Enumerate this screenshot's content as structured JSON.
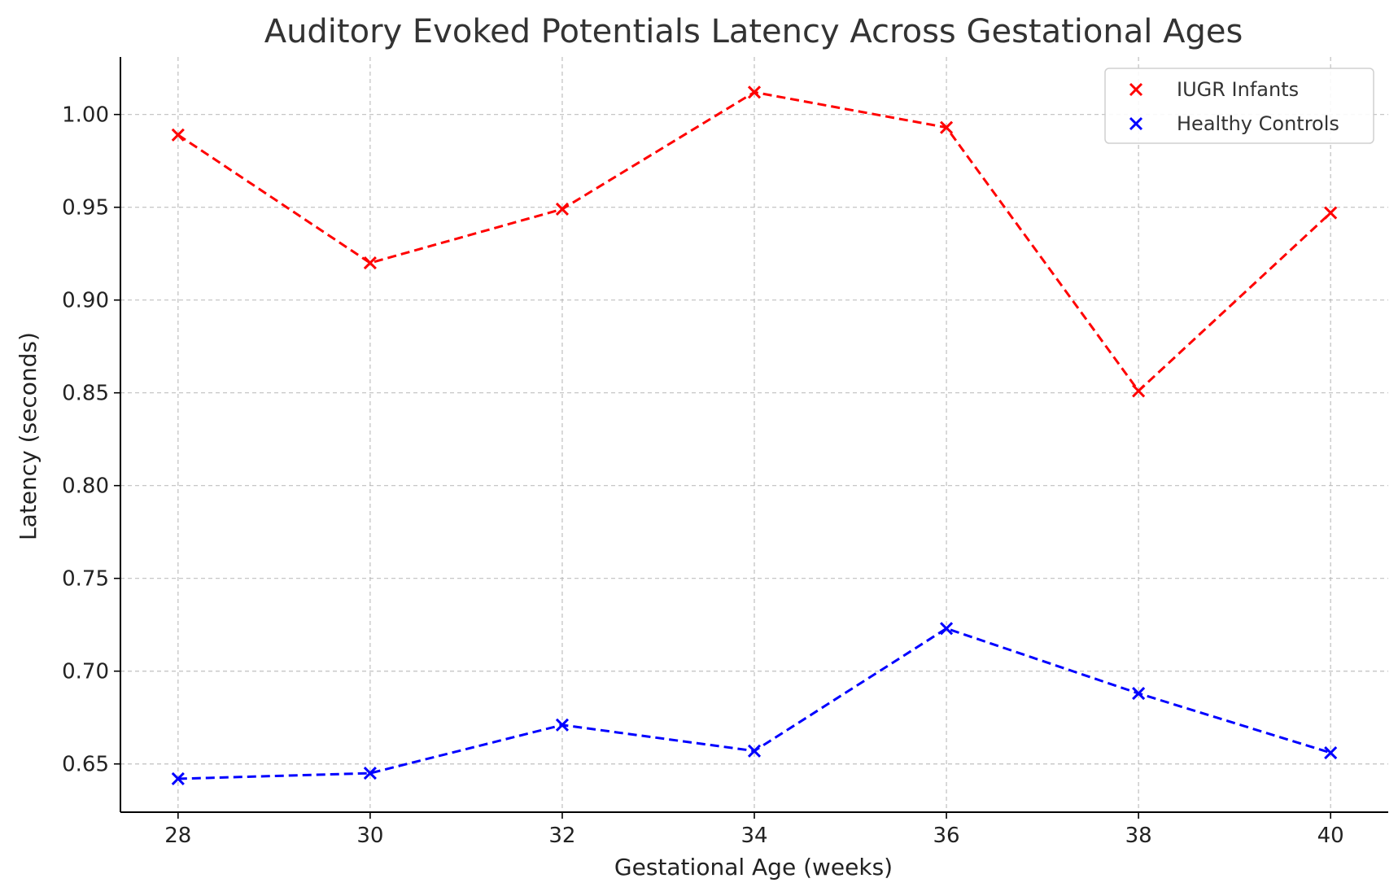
{
  "chart_data": {
    "type": "line",
    "title": "Auditory Evoked Potentials Latency Across Gestational Ages",
    "xlabel": "Gestational Age (weeks)",
    "ylabel": "Latency (seconds)",
    "x": [
      28,
      30,
      32,
      34,
      36,
      38,
      40
    ],
    "xlim": [
      27.4,
      40.6
    ],
    "ylim": [
      0.624,
      1.031
    ],
    "xticks": [
      28,
      30,
      32,
      34,
      36,
      38,
      40
    ],
    "yticks": [
      0.65,
      0.7,
      0.75,
      0.8,
      0.85,
      0.9,
      0.95,
      1.0
    ],
    "ytick_labels": [
      "0.65",
      "0.70",
      "0.75",
      "0.80",
      "0.85",
      "0.90",
      "0.95",
      "1.00"
    ],
    "grid": true,
    "legend_position": "top-right",
    "series": [
      {
        "name": "IUGR Infants",
        "color": "#ff0000",
        "marker": "x",
        "linestyle": "dashed",
        "values": [
          0.989,
          0.92,
          0.949,
          1.012,
          0.993,
          0.851,
          0.947
        ]
      },
      {
        "name": "Healthy Controls",
        "color": "#0000ff",
        "marker": "x",
        "linestyle": "dashed",
        "values": [
          0.642,
          0.645,
          0.671,
          0.657,
          0.723,
          0.688,
          0.656
        ]
      }
    ]
  }
}
